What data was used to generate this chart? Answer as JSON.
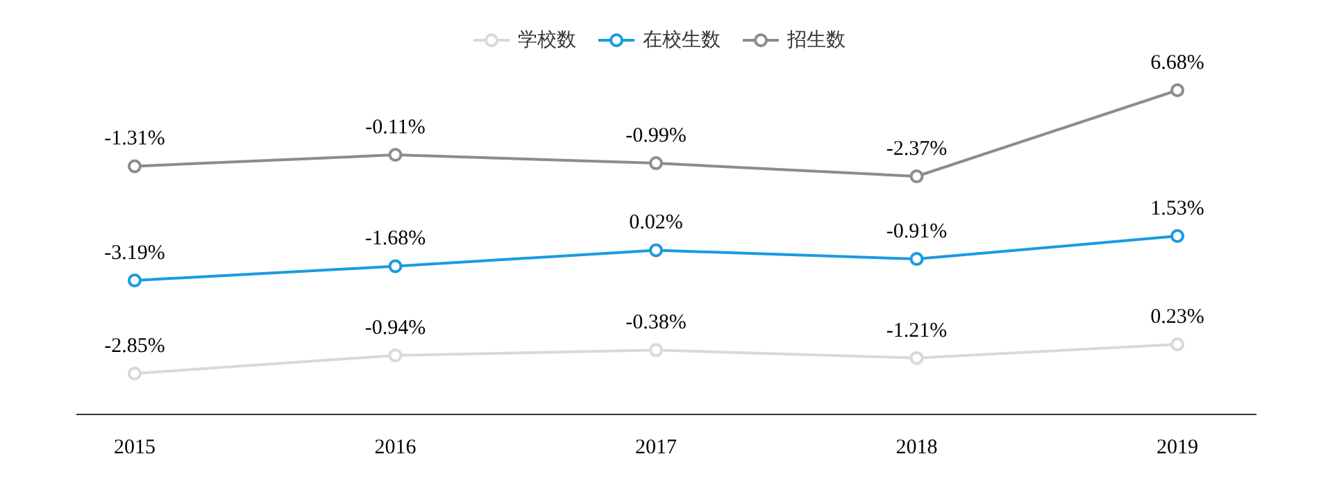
{
  "chart_data": [
    {
      "type": "line",
      "categories": [
        "2015",
        "2016",
        "2017",
        "2018",
        "2019"
      ],
      "series": [
        {
          "name": "招生数",
          "color": "#8c8c8c",
          "values": [
            -1.31,
            -0.11,
            -0.99,
            -2.37,
            6.68
          ],
          "value_labels": [
            "-1.31%",
            "-0.11%",
            "-0.99%",
            "-2.37%",
            "6.68%"
          ]
        }
      ],
      "tick_labels": false,
      "legend": "top",
      "marker": "circle",
      "line_style": "solid",
      "grid": false
    },
    {
      "type": "line",
      "categories": [
        "2015",
        "2016",
        "2017",
        "2018",
        "2019"
      ],
      "series": [
        {
          "name": "在校生数",
          "color": "#1a9be0",
          "values": [
            -3.19,
            -1.68,
            0.02,
            -0.91,
            1.53
          ],
          "value_labels": [
            "-3.19%",
            "-1.68%",
            "0.02%",
            "-0.91%",
            "1.53%"
          ]
        }
      ],
      "tick_labels": false,
      "legend": "top",
      "marker": "circle",
      "line_style": "solid",
      "grid": false
    },
    {
      "type": "line",
      "categories": [
        "2015",
        "2016",
        "2017",
        "2018",
        "2019"
      ],
      "series": [
        {
          "name": "学校数",
          "color": "#d9d9d9",
          "values": [
            -2.85,
            -0.94,
            -0.38,
            -1.21,
            0.23
          ],
          "value_labels": [
            "-2.85%",
            "-0.94%",
            "-0.38%",
            "-1.21%",
            "0.23%"
          ]
        }
      ],
      "tick_labels": "x",
      "legend": "top",
      "marker": "circle",
      "line_style": "solid",
      "grid": false
    }
  ]
}
